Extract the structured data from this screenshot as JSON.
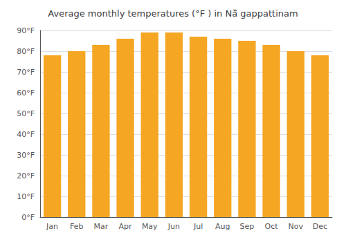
{
  "chart_data": {
    "type": "bar",
    "title": "Average monthly temperatures (°F ) in Nā̈ gappattinam",
    "categories": [
      "Jan",
      "Feb",
      "Mar",
      "Apr",
      "May",
      "Jun",
      "Jul",
      "Aug",
      "Sep",
      "Oct",
      "Nov",
      "Dec"
    ],
    "values": [
      78,
      80,
      83,
      86,
      89,
      89,
      87,
      86,
      85,
      83,
      80,
      78
    ],
    "color": "#F5A623",
    "ylim": [
      0,
      90
    ],
    "yticks": [
      {
        "value": 0,
        "label": "0°F"
      },
      {
        "value": 10,
        "label": "10°F"
      },
      {
        "value": 20,
        "label": "20°F"
      },
      {
        "value": 30,
        "label": "30°F"
      },
      {
        "value": 40,
        "label": "40°F"
      },
      {
        "value": 50,
        "label": "50°F"
      },
      {
        "value": 60,
        "label": "60°F"
      },
      {
        "value": 70,
        "label": "70°F"
      },
      {
        "value": 80,
        "label": "80°F"
      },
      {
        "value": 90,
        "label": "90°F"
      }
    ],
    "grid": true
  }
}
